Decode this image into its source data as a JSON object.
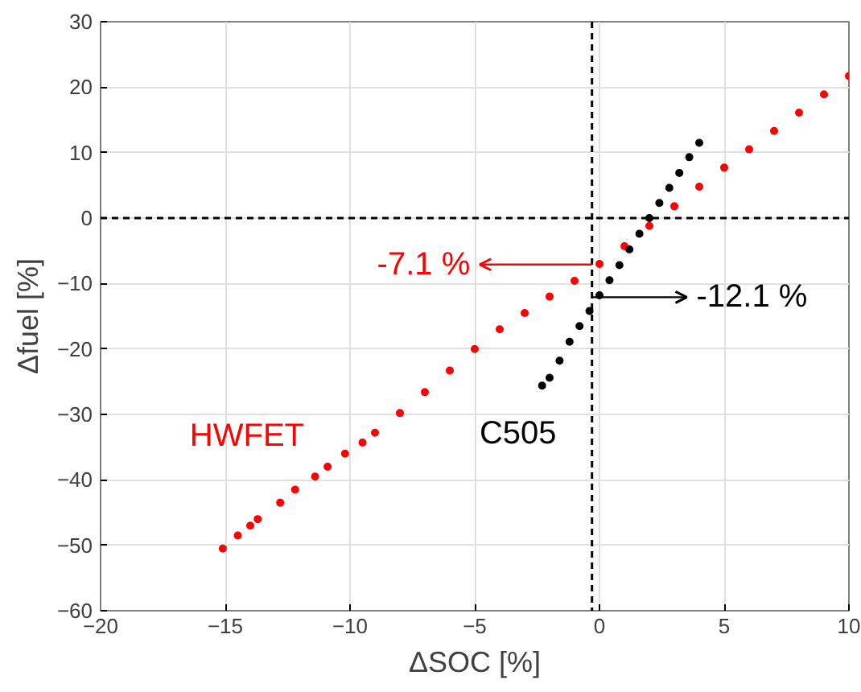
{
  "chart_data": {
    "type": "scatter",
    "xlabel": "ΔSOC [%]",
    "ylabel": "Δfuel [%]",
    "xlim": [
      -20,
      10
    ],
    "ylim": [
      -60,
      30
    ],
    "xticks": [
      -20,
      -15,
      -10,
      -5,
      0,
      5,
      10
    ],
    "yticks": [
      -60,
      -50,
      -40,
      -30,
      -20,
      -10,
      0,
      10,
      20,
      30
    ],
    "grid": true,
    "marker": "circle",
    "series": [
      {
        "name": "HWFET",
        "color": "#ff0000",
        "x": [
          -15.1,
          -14.5,
          -14.0,
          -13.7,
          -12.8,
          -12.2,
          -11.4,
          -10.9,
          -10.2,
          -9.5,
          -9.0,
          -8.0,
          -7.0,
          -6.0,
          -5.0,
          -4.0,
          -3.0,
          -2.0,
          -1.0,
          0,
          1,
          2,
          3,
          4,
          5,
          6,
          7,
          8,
          9,
          10
        ],
        "values": [
          -50.5,
          -48.5,
          -47,
          -46,
          -43.5,
          -41.5,
          -39.5,
          -38,
          -36,
          -34.3,
          -32.8,
          -29.8,
          -26.6,
          -23.3,
          -20,
          -17,
          -14.5,
          -12,
          -9.6,
          -7,
          -4.3,
          -1.2,
          1.8,
          4.8,
          7.7,
          10.5,
          13.3,
          16.1,
          18.9,
          21.7
        ]
      },
      {
        "name": "C505",
        "color": "#000000",
        "x": [
          -2.3,
          -2.0,
          -1.6,
          -1.2,
          -0.8,
          -0.4,
          0,
          0.4,
          0.8,
          1.2,
          1.6,
          2.0,
          2.4,
          2.8,
          3.2,
          3.6,
          4.0
        ],
        "values": [
          -25.6,
          -24.4,
          -21.8,
          -18.9,
          -16.5,
          -14.2,
          -11.8,
          -9.5,
          -7.2,
          -4.8,
          -2.4,
          0,
          2.3,
          4.6,
          6.9,
          9.3,
          11.5
        ]
      }
    ],
    "ref_lines": [
      {
        "axis": "x",
        "value": -0.3,
        "color": "#000000",
        "line_style": "dashed"
      },
      {
        "axis": "y",
        "value": 0,
        "color": "#000000",
        "line_style": "dashed"
      }
    ],
    "annotations": [
      {
        "text": "-7.1 %",
        "x": -0.3,
        "y": -7.1
      },
      {
        "text": "-12.1 %",
        "x": -0.3,
        "y": -12.1
      }
    ]
  }
}
